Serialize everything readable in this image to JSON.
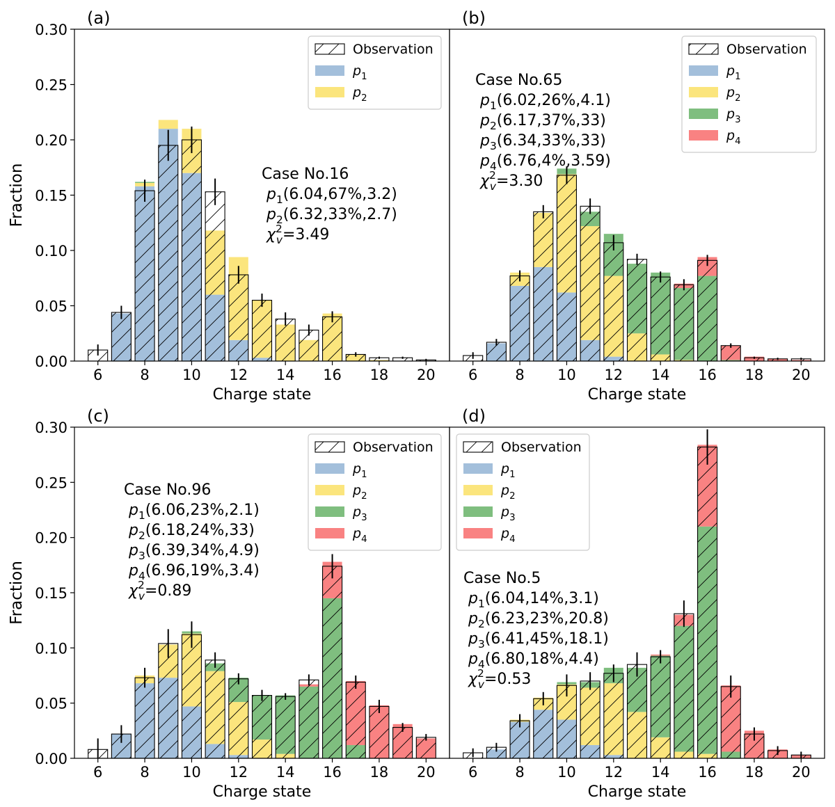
{
  "colors": {
    "p1": "#a3bfdb",
    "p2": "#fbe57d",
    "p3": "#7fbe7f",
    "p4": "#f98282",
    "edge": "#000000"
  },
  "chart_data": [
    {
      "type": "bar",
      "panel_label": "(a)",
      "xlabel": "Charge state",
      "ylabel": "Fraction",
      "xticks": [
        "6",
        "8",
        "10",
        "12",
        "14",
        "16",
        "18",
        "20"
      ],
      "yticks": [
        "0.00",
        "0.05",
        "0.10",
        "0.15",
        "0.20",
        "0.25",
        "0.30"
      ],
      "xlim": [
        5,
        21
      ],
      "ylim": [
        0,
        0.3
      ],
      "legend": {
        "position": "top-right",
        "entries": [
          "Observation",
          "p1",
          "p2"
        ]
      },
      "annotation": {
        "title": "Case No.16",
        "lines": [
          "p1(6.04,67%,3.2)",
          "p2(6.32,33%,2.7)"
        ],
        "chi2": "χv2=3.49"
      },
      "x": [
        6,
        7,
        8,
        9,
        10,
        11,
        12,
        13,
        14,
        15,
        16,
        17,
        18,
        19,
        20
      ],
      "series": [
        {
          "name": "p1",
          "values": [
            0,
            0.043,
            0.158,
            0.21,
            0.17,
            0.06,
            0.019,
            0.003,
            0,
            0,
            0,
            0,
            0,
            0,
            0
          ]
        },
        {
          "name": "p2",
          "values": [
            0,
            0,
            0.003,
            0.008,
            0.04,
            0.058,
            0.075,
            0.052,
            0.033,
            0.019,
            0.043,
            0.006,
            0.001,
            0,
            0
          ]
        },
        {
          "name": "p3",
          "values": [
            0,
            0,
            0.001,
            0,
            0,
            0,
            0,
            0,
            0,
            0,
            0,
            0,
            0,
            0,
            0
          ]
        },
        {
          "name": "p4",
          "values": [
            0,
            0,
            0,
            0,
            0,
            0,
            0,
            0,
            0,
            0,
            0,
            0,
            0,
            0,
            0
          ]
        }
      ],
      "observation": [
        0.01,
        0.044,
        0.154,
        0.195,
        0.2,
        0.153,
        0.078,
        0.055,
        0.038,
        0.028,
        0.04,
        0.006,
        0.003,
        0.003,
        0.001
      ],
      "errors": [
        0.005,
        0.006,
        0.01,
        0.014,
        0.012,
        0.012,
        0.008,
        0.006,
        0.006,
        0.005,
        0.005,
        0.002,
        0.001,
        0.001,
        0.001
      ]
    },
    {
      "type": "bar",
      "panel_label": "(b)",
      "xlabel": "Charge state",
      "ylabel": "",
      "xticks": [
        "6",
        "8",
        "10",
        "12",
        "14",
        "16",
        "18",
        "20"
      ],
      "yticks": [],
      "xlim": [
        5,
        21
      ],
      "ylim": [
        0,
        0.3
      ],
      "legend": {
        "position": "top-right",
        "entries": [
          "Observation",
          "p1",
          "p2",
          "p3",
          "p4"
        ]
      },
      "annotation": {
        "title": "Case No.65",
        "lines": [
          "p1(6.02,26%,4.1)",
          "p2(6.17,37%,33)",
          "p3(6.34,33%,33)",
          "p4(6.76,4%,3.59)"
        ],
        "chi2": "χv2=3.30"
      },
      "x": [
        6,
        7,
        8,
        9,
        10,
        11,
        12,
        13,
        14,
        15,
        16,
        17,
        18,
        19,
        20
      ],
      "series": [
        {
          "name": "p1",
          "values": [
            0,
            0.016,
            0.068,
            0.085,
            0.062,
            0.019,
            0.004,
            0,
            0,
            0,
            0,
            0,
            0,
            0,
            0
          ]
        },
        {
          "name": "p2",
          "values": [
            0,
            0,
            0.012,
            0.049,
            0.107,
            0.103,
            0.073,
            0.025,
            0.006,
            0.001,
            0,
            0,
            0,
            0,
            0
          ]
        },
        {
          "name": "p3",
          "values": [
            0,
            0,
            0,
            0,
            0.005,
            0.013,
            0.038,
            0.063,
            0.074,
            0.065,
            0.077,
            0.001,
            0,
            0,
            0
          ]
        },
        {
          "name": "p4",
          "values": [
            0,
            0,
            0,
            0,
            0,
            0,
            0,
            0,
            0,
            0.004,
            0.017,
            0.013,
            0.004,
            0.002,
            0.001
          ]
        }
      ],
      "observation": [
        0.005,
        0.017,
        0.077,
        0.135,
        0.168,
        0.14,
        0.107,
        0.092,
        0.076,
        0.069,
        0.091,
        0.014,
        0.003,
        0.002,
        0.002
      ],
      "errors": [
        0.003,
        0.003,
        0.005,
        0.006,
        0.008,
        0.007,
        0.007,
        0.005,
        0.005,
        0.005,
        0.005,
        0.002,
        0.001,
        0.001,
        0.001
      ]
    },
    {
      "type": "bar",
      "panel_label": "(c)",
      "xlabel": "Charge state",
      "ylabel": "Fraction",
      "xticks": [
        "6",
        "8",
        "10",
        "12",
        "14",
        "16",
        "18",
        "20"
      ],
      "yticks": [
        "0.00",
        "0.05",
        "0.10",
        "0.15",
        "0.20",
        "0.25",
        "0.30"
      ],
      "xlim": [
        5,
        21
      ],
      "ylim": [
        0,
        0.3
      ],
      "legend": {
        "position": "top-right",
        "entries": [
          "Observation",
          "p1",
          "p2",
          "p3",
          "p4"
        ]
      },
      "annotation": {
        "title": "Case No.96",
        "lines": [
          "p1(6.06,23%,2.1)",
          "p2(6.18,24%,33)",
          "p3(6.39,34%,4.9)",
          "p4(6.96,19%,3.4)"
        ],
        "chi2": "χv2=0.89"
      },
      "x": [
        6,
        7,
        8,
        9,
        10,
        11,
        12,
        13,
        14,
        15,
        16,
        17,
        18,
        19,
        20
      ],
      "series": [
        {
          "name": "p1",
          "values": [
            0,
            0.022,
            0.068,
            0.073,
            0.047,
            0.013,
            0.003,
            0,
            0,
            0,
            0,
            0,
            0,
            0,
            0
          ]
        },
        {
          "name": "p2",
          "values": [
            0,
            0,
            0.007,
            0.03,
            0.066,
            0.066,
            0.048,
            0.017,
            0.004,
            0,
            0,
            0,
            0,
            0,
            0
          ]
        },
        {
          "name": "p3",
          "values": [
            0,
            0,
            0,
            0,
            0.002,
            0.007,
            0.022,
            0.04,
            0.053,
            0.065,
            0.145,
            0.012,
            0,
            0,
            0
          ]
        },
        {
          "name": "p4",
          "values": [
            0,
            0,
            0,
            0,
            0,
            0,
            0,
            0,
            0,
            0.002,
            0.033,
            0.058,
            0.048,
            0.031,
            0.018
          ]
        }
      ],
      "observation": [
        0.008,
        0.022,
        0.073,
        0.104,
        0.112,
        0.089,
        0.072,
        0.057,
        0.056,
        0.071,
        0.174,
        0.069,
        0.047,
        0.028,
        0.019
      ],
      "errors": [
        0.01,
        0.008,
        0.009,
        0.013,
        0.012,
        0.007,
        0.005,
        0.005,
        0.003,
        0.005,
        0.011,
        0.006,
        0.006,
        0.004,
        0.003
      ]
    },
    {
      "type": "bar",
      "panel_label": "(d)",
      "xlabel": "Charge state",
      "ylabel": "",
      "xticks": [
        "6",
        "8",
        "10",
        "12",
        "14",
        "16",
        "18",
        "20"
      ],
      "yticks": [],
      "xlim": [
        5,
        21
      ],
      "ylim": [
        0,
        0.3
      ],
      "legend": {
        "position": "top-left",
        "entries": [
          "Observation",
          "p1",
          "p2",
          "p3",
          "p4"
        ]
      },
      "annotation": {
        "title": "Case No.5",
        "lines": [
          "p1(6.04,14%,3.1)",
          "p2(6.23,23%,20.8)",
          "p3(6.41,45%,18.1)",
          "p4(6.80,18%,4.4)"
        ],
        "chi2": "χv2=0.53"
      },
      "x": [
        6,
        7,
        8,
        9,
        10,
        11,
        12,
        13,
        14,
        15,
        16,
        17,
        18,
        19,
        20
      ],
      "series": [
        {
          "name": "p1",
          "values": [
            0,
            0.008,
            0.033,
            0.044,
            0.035,
            0.012,
            0.003,
            0,
            0,
            0,
            0,
            0,
            0,
            0,
            0
          ]
        },
        {
          "name": "p2",
          "values": [
            0,
            0,
            0.002,
            0.011,
            0.032,
            0.052,
            0.065,
            0.042,
            0.019,
            0.006,
            0.004,
            0,
            0,
            0,
            0
          ]
        },
        {
          "name": "p3",
          "values": [
            0,
            0,
            0,
            0,
            0.002,
            0.005,
            0.014,
            0.04,
            0.074,
            0.114,
            0.206,
            0.006,
            0,
            0,
            0
          ]
        },
        {
          "name": "p4",
          "values": [
            0,
            0,
            0,
            0,
            0,
            0,
            0,
            0,
            0.001,
            0.01,
            0.074,
            0.06,
            0.025,
            0.008,
            0.003
          ]
        }
      ],
      "observation": [
        0.005,
        0.01,
        0.034,
        0.054,
        0.066,
        0.07,
        0.077,
        0.085,
        0.092,
        0.131,
        0.282,
        0.065,
        0.022,
        0.007,
        0.003
      ],
      "errors": [
        0.004,
        0.004,
        0.006,
        0.006,
        0.01,
        0.008,
        0.008,
        0.011,
        0.006,
        0.012,
        0.016,
        0.01,
        0.006,
        0.004,
        0.003
      ]
    }
  ]
}
